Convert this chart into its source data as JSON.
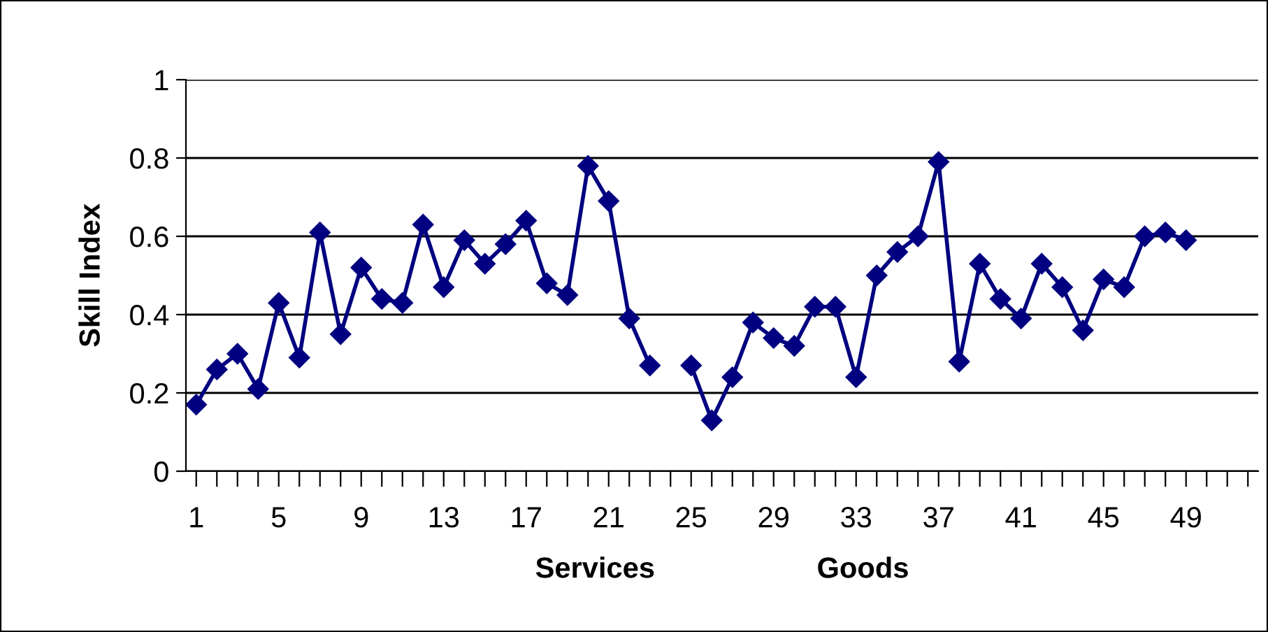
{
  "chart_data": {
    "type": "line",
    "ylabel": "Skill Index",
    "xlabel": "Services                    Goods",
    "categories": [
      "1",
      null,
      null,
      null,
      "5",
      null,
      null,
      null,
      "9",
      null,
      null,
      null,
      "13",
      null,
      null,
      null,
      "17",
      null,
      null,
      null,
      "21",
      null,
      null,
      null,
      "25",
      null,
      null,
      null,
      "29",
      null,
      null,
      null,
      "33",
      null,
      null,
      null,
      "37",
      null,
      null,
      null,
      "41",
      null,
      null,
      null,
      "45",
      null,
      null,
      null,
      "49",
      null,
      null,
      null
    ],
    "series": [
      {
        "color": "#000080",
        "values": [
          0.17,
          0.26,
          0.3,
          0.21,
          0.43,
          0.29,
          0.61,
          0.35,
          0.52,
          0.44,
          0.43,
          0.63,
          0.47,
          0.59,
          0.53,
          0.58,
          0.64,
          0.48,
          0.45,
          0.78,
          0.69,
          0.39,
          0.27,
          null,
          0.27,
          0.13,
          0.24,
          0.38,
          0.34,
          0.32,
          0.42,
          0.42,
          0.24,
          0.5,
          0.56,
          0.6,
          0.79,
          0.28,
          0.53,
          0.44,
          0.39,
          0.53,
          0.47,
          0.36,
          0.49,
          0.47,
          0.6,
          0.61,
          0.59,
          null,
          null,
          null
        ]
      }
    ],
    "ylim": [
      0,
      1
    ],
    "yticks": [
      0,
      0.2,
      0.4,
      0.6,
      0.8,
      1
    ],
    "grid": "y",
    "marker": "diamond",
    "line_style": "solid",
    "legend": false
  }
}
